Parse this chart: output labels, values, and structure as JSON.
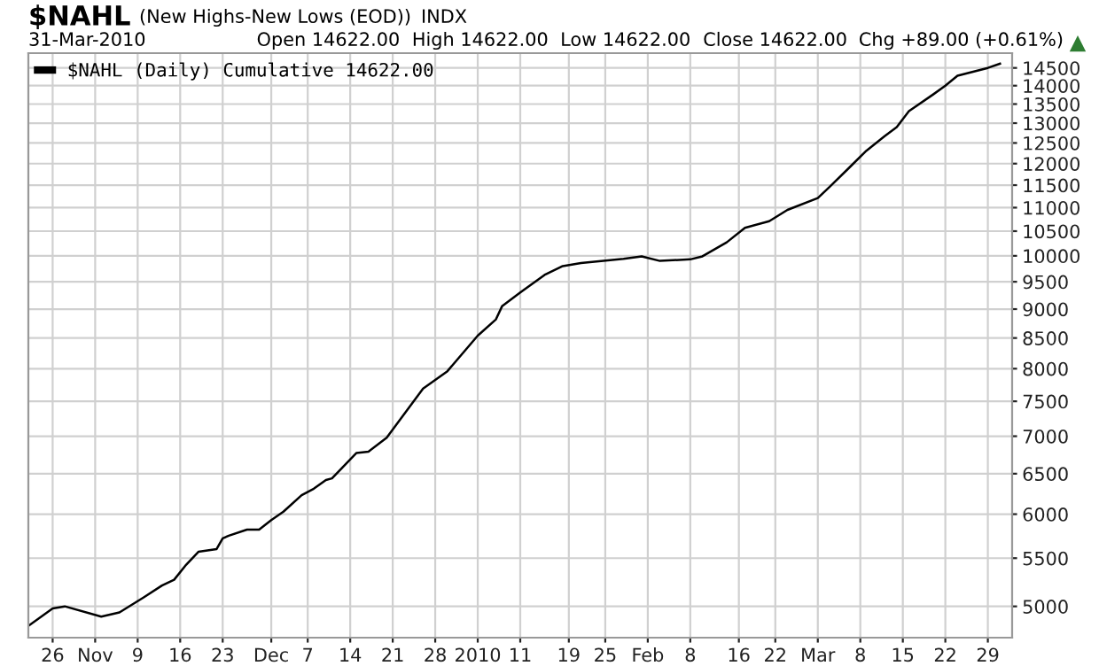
{
  "chart_data": {
    "type": "line",
    "title": "$NAHL",
    "subtitle": "(New Highs-New Lows (EOD))",
    "annotations": [
      "INDX",
      "31-Mar-2010",
      "Open 14622.00",
      "High 14622.00",
      "Low 14622.00",
      "Close 14622.00",
      "Chg +89.00 (+0.61%)"
    ],
    "series": [
      {
        "name": "$NAHL (Daily) Cumulative 14622.00",
        "color": "#000000",
        "x": [
          "2009-10-22",
          "2009-10-26",
          "2009-10-28",
          "2009-11-03",
          "2009-11-06",
          "2009-11-10",
          "2009-11-13",
          "2009-11-15",
          "2009-11-17",
          "2009-11-19",
          "2009-11-22",
          "2009-11-23",
          "2009-11-24",
          "2009-11-27",
          "2009-11-29",
          "2009-12-01",
          "2009-12-03",
          "2009-12-06",
          "2009-12-08",
          "2009-12-10",
          "2009-12-11",
          "2009-12-15",
          "2009-12-17",
          "2009-12-20",
          "2009-12-26",
          "2009-12-30",
          "2010-01-04",
          "2010-01-07",
          "2010-01-08",
          "2010-01-11",
          "2010-01-15",
          "2010-01-18",
          "2010-01-21",
          "2010-01-28",
          "2010-01-31",
          "2010-02-03",
          "2010-02-08",
          "2010-02-10",
          "2010-02-14",
          "2010-02-17",
          "2010-02-21",
          "2010-02-24",
          "2010-03-01",
          "2010-03-03",
          "2010-03-06",
          "2010-03-09",
          "2010-03-12",
          "2010-03-14",
          "2010-03-16",
          "2010-03-20",
          "2010-03-22",
          "2010-03-24",
          "2010-03-29",
          "2010-03-31"
        ],
        "values": [
          4810,
          4980,
          5000,
          4900,
          4940,
          5090,
          5210,
          5270,
          5430,
          5570,
          5600,
          5720,
          5750,
          5820,
          5820,
          5930,
          6030,
          6230,
          6310,
          6420,
          6440,
          6770,
          6790,
          6980,
          7690,
          7960,
          8540,
          8820,
          9050,
          9300,
          9630,
          9800,
          9860,
          9940,
          9990,
          9900,
          9930,
          9990,
          10270,
          10570,
          10710,
          10950,
          11210,
          11470,
          11880,
          12310,
          12670,
          12900,
          13310,
          13760,
          14000,
          14280,
          14500,
          14622
        ]
      }
    ],
    "xlim": [
      "2009-10-22",
      "2010-04-02"
    ],
    "xticks": [
      {
        "value": "2009-10-26",
        "label": "26"
      },
      {
        "value": "2009-11-02",
        "label": "Nov"
      },
      {
        "value": "2009-11-09",
        "label": "9"
      },
      {
        "value": "2009-11-16",
        "label": "16"
      },
      {
        "value": "2009-11-23",
        "label": "23"
      },
      {
        "value": "2009-12-01",
        "label": "Dec"
      },
      {
        "value": "2009-12-07",
        "label": "7"
      },
      {
        "value": "2009-12-14",
        "label": "14"
      },
      {
        "value": "2009-12-21",
        "label": "21"
      },
      {
        "value": "2009-12-28",
        "label": "28"
      },
      {
        "value": "2010-01-04",
        "label": "2010"
      },
      {
        "value": "2010-01-11",
        "label": "11"
      },
      {
        "value": "2010-01-19",
        "label": "19"
      },
      {
        "value": "2010-01-25",
        "label": "25"
      },
      {
        "value": "2010-02-01",
        "label": "Feb"
      },
      {
        "value": "2010-02-08",
        "label": "8"
      },
      {
        "value": "2010-02-16",
        "label": "16"
      },
      {
        "value": "2010-02-22",
        "label": "22"
      },
      {
        "value": "2010-03-01",
        "label": "Mar"
      },
      {
        "value": "2010-03-08",
        "label": "8"
      },
      {
        "value": "2010-03-15",
        "label": "15"
      },
      {
        "value": "2010-03-22",
        "label": "22"
      },
      {
        "value": "2010-03-29",
        "label": "29"
      }
    ],
    "ylim": [
      4700,
      14930
    ],
    "log": "y",
    "yticks": [
      5000,
      5500,
      6000,
      6500,
      7000,
      7500,
      8000,
      8500,
      9000,
      9500,
      10000,
      10500,
      11000,
      11500,
      12000,
      12500,
      13000,
      13500,
      14000,
      14500
    ],
    "grid": true,
    "legend": "top left",
    "marker": "none",
    "line_style": "solid"
  }
}
